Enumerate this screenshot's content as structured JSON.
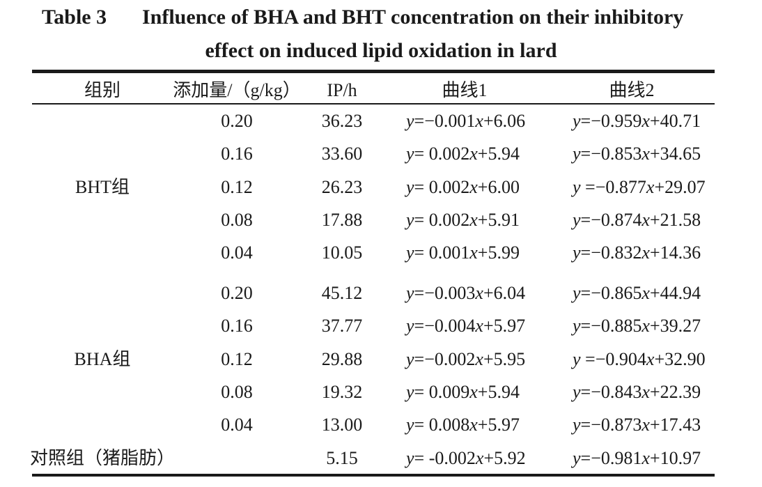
{
  "table": {
    "title_number": "Table 3",
    "title_line1": "Influence of BHA and BHT concentration on their inhibitory",
    "title_line2": "effect on induced lipid oxidation in lard",
    "headers": {
      "group": "组别",
      "dose": "添加量/（g/kg）",
      "ip": "IP/h",
      "curve1": "曲线1",
      "curve2": "曲线2"
    },
    "groups": [
      {
        "label": "BHT组",
        "rows": [
          {
            "dose": "0.20",
            "ip": "36.23",
            "curve1": "y=−0.001x+6.06",
            "curve2": "y=−0.959x+40.71"
          },
          {
            "dose": "0.16",
            "ip": "33.60",
            "curve1": "y= 0.002x+5.94",
            "curve2": "y=−0.853x+34.65"
          },
          {
            "dose": "0.12",
            "ip": "26.23",
            "curve1": "y= 0.002x+6.00",
            "curve2": "y =−0.877x+29.07"
          },
          {
            "dose": "0.08",
            "ip": "17.88",
            "curve1": "y= 0.002x+5.91",
            "curve2": "y=−0.874x+21.58"
          },
          {
            "dose": "0.04",
            "ip": "10.05",
            "curve1": "y= 0.001x+5.99",
            "curve2": "y=−0.832x+14.36"
          }
        ]
      },
      {
        "label": "BHA组",
        "rows": [
          {
            "dose": "0.20",
            "ip": "45.12",
            "curve1": "y=−0.003x+6.04",
            "curve2": "y=−0.865x+44.94"
          },
          {
            "dose": "0.16",
            "ip": "37.77",
            "curve1": "y=−0.004x+5.97",
            "curve2": "y=−0.885x+39.27"
          },
          {
            "dose": "0.12",
            "ip": "29.88",
            "curve1": "y=−0.002x+5.95",
            "curve2": "y =−0.904x+32.90"
          },
          {
            "dose": "0.08",
            "ip": "19.32",
            "curve1": "y= 0.009x+5.94",
            "curve2": "y=−0.843x+22.39"
          },
          {
            "dose": "0.04",
            "ip": "13.00",
            "curve1": "y= 0.008x+5.97",
            "curve2": "y=−0.873x+17.43"
          }
        ]
      }
    ],
    "control": {
      "label": "对照组（猪脂肪）",
      "ip": "5.15",
      "curve1": "y= -0.002x+5.92",
      "curve2": "y=−0.981x+10.97"
    }
  }
}
